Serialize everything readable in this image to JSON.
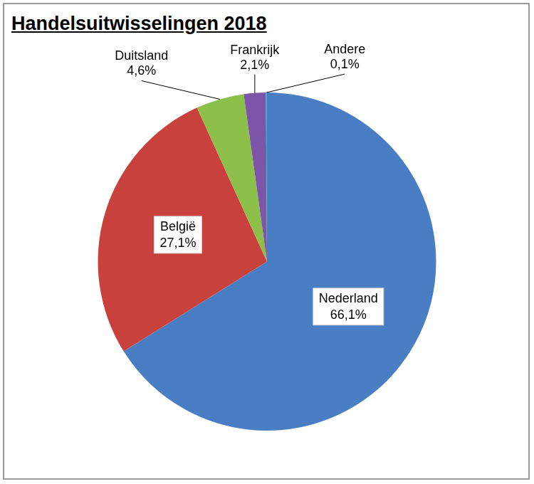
{
  "chart_data": {
    "type": "pie",
    "title": "Handelsuitwisselingen 2018",
    "categories": [
      "Nederland",
      "België",
      "Duitsland",
      "Frankrijk",
      "Andere"
    ],
    "values": [
      66.1,
      27.1,
      4.6,
      2.1,
      0.1
    ],
    "value_labels": [
      "66,1%",
      "27,1%",
      "4,6%",
      "2,1%",
      "0,1%"
    ],
    "colors": [
      "#4a7ec4",
      "#c9413c",
      "#8cc04a",
      "#7d55a8",
      "#3fa8c8"
    ],
    "data_labels": true
  }
}
